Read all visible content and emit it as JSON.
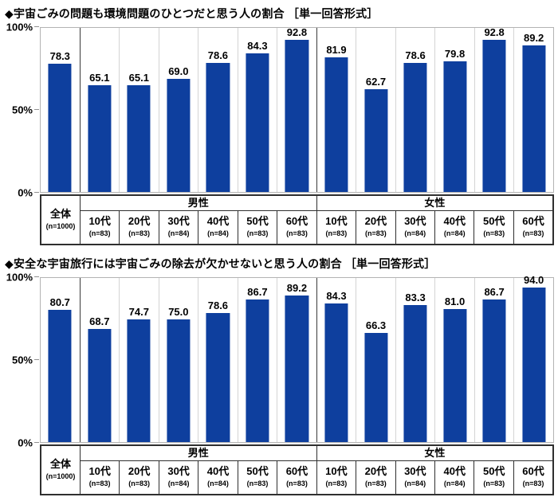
{
  "colors": {
    "bar": "#0e3f9e",
    "grid_line": "#d4d4d4",
    "plot_border": "#b3b3b3",
    "group_divider": "#3a3a3a",
    "table_border": "#2f2f2f",
    "text": "#000000"
  },
  "chart_data": [
    {
      "type": "bar",
      "title": "◆宇宙ごみの問題も環境問題のひとつだと思う人の割合 ［単一回答形式］",
      "xlabel": "",
      "ylabel": "",
      "ylim": [
        0,
        100
      ],
      "yticks": [
        "100%",
        "50%",
        "0%"
      ],
      "grid": false,
      "legend_position": "none",
      "value_label_format": "one-decimal",
      "groups": [
        {
          "section": "全体",
          "categories": [
            "全体"
          ],
          "ns": [
            "(n=1000)"
          ],
          "values": [
            78.3
          ]
        },
        {
          "section": "男性",
          "categories": [
            "10代",
            "20代",
            "30代",
            "40代",
            "50代",
            "60代"
          ],
          "ns": [
            "(n=83)",
            "(n=83)",
            "(n=84)",
            "(n=84)",
            "(n=83)",
            "(n=83)"
          ],
          "values": [
            65.1,
            65.1,
            69.0,
            78.6,
            84.3,
            92.8
          ]
        },
        {
          "section": "女性",
          "categories": [
            "10代",
            "20代",
            "30代",
            "40代",
            "50代",
            "60代"
          ],
          "ns": [
            "(n=83)",
            "(n=83)",
            "(n=84)",
            "(n=84)",
            "(n=83)",
            "(n=83)"
          ],
          "values": [
            81.9,
            62.7,
            78.6,
            79.8,
            92.8,
            89.2
          ]
        }
      ]
    },
    {
      "type": "bar",
      "title": "◆安全な宇宙旅行には宇宙ごみの除去が欠かせないと思う人の割合 ［単一回答形式］",
      "xlabel": "",
      "ylabel": "",
      "ylim": [
        0,
        100
      ],
      "yticks": [
        "100%",
        "50%",
        "0%"
      ],
      "grid": false,
      "legend_position": "none",
      "value_label_format": "one-decimal",
      "groups": [
        {
          "section": "全体",
          "categories": [
            "全体"
          ],
          "ns": [
            "(n=1000)"
          ],
          "values": [
            80.7
          ]
        },
        {
          "section": "男性",
          "categories": [
            "10代",
            "20代",
            "30代",
            "40代",
            "50代",
            "60代"
          ],
          "ns": [
            "(n=83)",
            "(n=83)",
            "(n=84)",
            "(n=84)",
            "(n=83)",
            "(n=83)"
          ],
          "values": [
            68.7,
            74.7,
            75.0,
            78.6,
            86.7,
            89.2
          ]
        },
        {
          "section": "女性",
          "categories": [
            "10代",
            "20代",
            "30代",
            "40代",
            "50代",
            "60代"
          ],
          "ns": [
            "(n=83)",
            "(n=83)",
            "(n=84)",
            "(n=84)",
            "(n=83)",
            "(n=83)"
          ],
          "values": [
            84.3,
            66.3,
            83.3,
            81.0,
            86.7,
            94.0
          ]
        }
      ]
    }
  ]
}
